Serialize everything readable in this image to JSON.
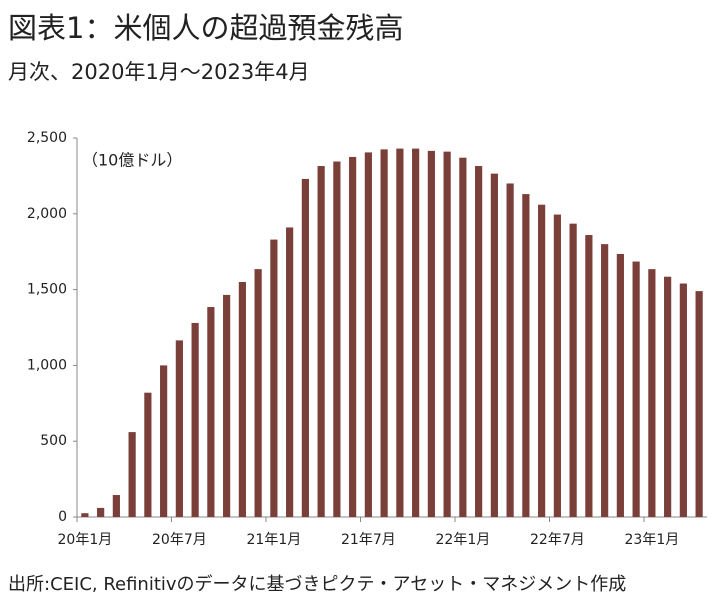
{
  "chart_data": {
    "type": "bar",
    "title": "図表1：米個人の超過預金残高",
    "subtitle": "月次、2020年1月～2023年4月",
    "y_label": "（10億ドル）",
    "source": "出所:CEIC, Refinitivのデータに基づきピクテ・アセット・マネジメント作成",
    "categories": [
      "20年1月",
      null,
      null,
      null,
      null,
      null,
      "20年7月",
      null,
      null,
      null,
      null,
      null,
      "21年1月",
      null,
      null,
      null,
      null,
      null,
      "21年7月",
      null,
      null,
      null,
      null,
      null,
      "22年1月",
      null,
      null,
      null,
      null,
      null,
      "22年7月",
      null,
      null,
      null,
      null,
      null,
      "23年1月",
      null,
      null,
      null
    ],
    "values": [
      25,
      60,
      145,
      560,
      820,
      1000,
      1165,
      1280,
      1385,
      1465,
      1550,
      1635,
      1830,
      1910,
      2230,
      2315,
      2345,
      2375,
      2405,
      2425,
      2430,
      2430,
      2415,
      2410,
      2370,
      2315,
      2265,
      2200,
      2130,
      2060,
      1995,
      1935,
      1860,
      1800,
      1735,
      1685,
      1635,
      1585,
      1540,
      1490
    ],
    "color": "#7b3f3a",
    "ylim": [
      0,
      2500
    ],
    "yticks": [
      0,
      500,
      {
        "value": 1000,
        "label": "1,000"
      },
      {
        "value": 1500,
        "label": "1,500"
      },
      {
        "value": 2000,
        "label": "2,000"
      },
      {
        "value": 2500,
        "label": "2,500"
      }
    ],
    "grid": false
  }
}
